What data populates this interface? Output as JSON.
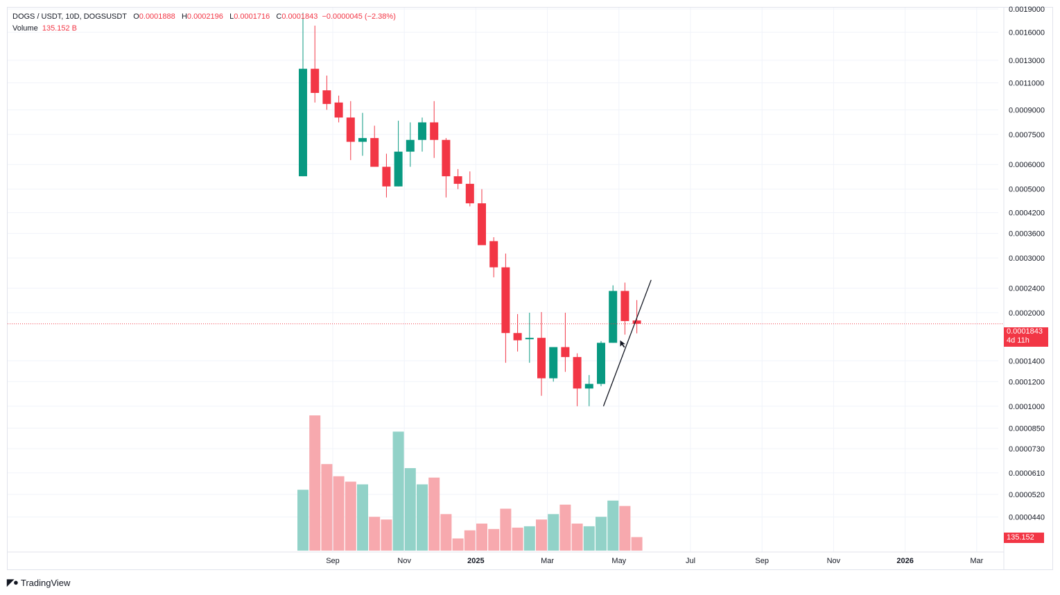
{
  "legend": {
    "symbol": "DOGS / USDT, 10D, DOGSUSDT",
    "o_label": "O",
    "o_value": "0.0001888",
    "h_label": "H",
    "h_value": "0.0002196",
    "l_label": "L",
    "l_value": "0.0001716",
    "c_label": "C",
    "c_value": "0.0001843",
    "change": "−0.0000045 (−2.38%)",
    "volume_label": "Volume",
    "volume_value": "135.152 B"
  },
  "last_price": {
    "value": "0.0001843",
    "countdown": "4d 11h"
  },
  "volume_badge": "135.152 B",
  "footer": {
    "brand": "TradingView",
    "icon": "tradingview-logo-icon"
  },
  "colors": {
    "up": "#089981",
    "down": "#f23645",
    "vol_up": "#92d2c8",
    "vol_down": "#f7a9ae",
    "grid": "#f0f3fa"
  },
  "chart_data": {
    "type": "candlestick",
    "y_scale": "log",
    "ylim": [
      4e-05,
      0.0019
    ],
    "y_ticks": [
      "0.0019000",
      "0.0016000",
      "0.0013000",
      "0.0011000",
      "0.0009000",
      "0.0007500",
      "0.0006000",
      "0.0005000",
      "0.0004200",
      "0.0003600",
      "0.0003000",
      "0.0002400",
      "0.0002000",
      "0.0001400",
      "0.0001200",
      "0.0001000",
      "0.0000850",
      "0.0000730",
      "0.0000610",
      "0.0000520",
      "0.0000440"
    ],
    "x_ticks": [
      {
        "label": "Sep",
        "bar": 2.5
      },
      {
        "label": "Nov",
        "bar": 8.5
      },
      {
        "label": "2025",
        "bar": 14.5
      },
      {
        "label": "Mar",
        "bar": 20.5
      },
      {
        "label": "May",
        "bar": 26.5
      },
      {
        "label": "Jul",
        "bar": 32.5
      },
      {
        "label": "Sep",
        "bar": 38.5
      },
      {
        "label": "Nov",
        "bar": 44.5
      },
      {
        "label": "2026",
        "bar": 50.5
      },
      {
        "label": "Mar",
        "bar": 56.5
      }
    ],
    "candles": [
      {
        "o": 0.00055,
        "h": 0.00185,
        "l": 0.00055,
        "c": 0.00122
      },
      {
        "o": 0.00122,
        "h": 0.00168,
        "l": 0.00095,
        "c": 0.00102
      },
      {
        "o": 0.00104,
        "h": 0.00116,
        "l": 0.0009,
        "c": 0.00094
      },
      {
        "o": 0.00095,
        "h": 0.001,
        "l": 0.00082,
        "c": 0.00085
      },
      {
        "o": 0.00085,
        "h": 0.00096,
        "l": 0.00062,
        "c": 0.00071
      },
      {
        "o": 0.00071,
        "h": 0.00088,
        "l": 0.00064,
        "c": 0.00073
      },
      {
        "o": 0.00073,
        "h": 0.0008,
        "l": 0.00059,
        "c": 0.00059
      },
      {
        "o": 0.00059,
        "h": 0.00065,
        "l": 0.00047,
        "c": 0.00051
      },
      {
        "o": 0.00051,
        "h": 0.00083,
        "l": 0.00051,
        "c": 0.00066
      },
      {
        "o": 0.00066,
        "h": 0.00082,
        "l": 0.00059,
        "c": 0.00072
      },
      {
        "o": 0.00072,
        "h": 0.00085,
        "l": 0.00066,
        "c": 0.00082
      },
      {
        "o": 0.00082,
        "h": 0.00096,
        "l": 0.00063,
        "c": 0.00072
      },
      {
        "o": 0.00072,
        "h": 0.00073,
        "l": 0.00047,
        "c": 0.00055
      },
      {
        "o": 0.00055,
        "h": 0.00058,
        "l": 0.0005,
        "c": 0.00052
      },
      {
        "o": 0.00052,
        "h": 0.00057,
        "l": 0.00044,
        "c": 0.00045
      },
      {
        "o": 0.00045,
        "h": 0.0005,
        "l": 0.00033,
        "c": 0.00033
      },
      {
        "o": 0.00034,
        "h": 0.00035,
        "l": 0.00026,
        "c": 0.00028
      },
      {
        "o": 0.00028,
        "h": 0.00031,
        "l": 0.000138,
        "c": 0.000172
      },
      {
        "o": 0.000172,
        "h": 0.000198,
        "l": 0.00015,
        "c": 0.000163
      },
      {
        "o": 0.000166,
        "h": 0.0002,
        "l": 0.000138,
        "c": 0.000166
      },
      {
        "o": 0.000166,
        "h": 0.000201,
        "l": 0.000108,
        "c": 0.000123
      },
      {
        "o": 0.000123,
        "h": 0.000155,
        "l": 0.00012,
        "c": 0.000155
      },
      {
        "o": 0.000155,
        "h": 0.0002,
        "l": 0.000129,
        "c": 0.000144
      },
      {
        "o": 0.000144,
        "h": 0.000148,
        "l": 0.0001,
        "c": 0.000114
      },
      {
        "o": 0.000114,
        "h": 0.000126,
        "l": 0.0001,
        "c": 0.000118
      },
      {
        "o": 0.000118,
        "h": 0.000162,
        "l": 0.000116,
        "c": 0.00016
      },
      {
        "o": 0.00016,
        "h": 0.000245,
        "l": 0.00016,
        "c": 0.000235
      },
      {
        "o": 0.000235,
        "h": 0.00025,
        "l": 0.00017,
        "c": 0.000188
      },
      {
        "o": 0.0001888,
        "h": 0.0002196,
        "l": 0.0001716,
        "c": 0.0001843
      }
    ],
    "volume_relative": [
      0.45,
      1.0,
      0.64,
      0.55,
      0.51,
      0.49,
      0.25,
      0.23,
      0.88,
      0.61,
      0.49,
      0.54,
      0.27,
      0.09,
      0.15,
      0.2,
      0.16,
      0.31,
      0.17,
      0.18,
      0.23,
      0.27,
      0.34,
      0.2,
      0.18,
      0.25,
      0.37,
      0.33,
      0.1
    ],
    "trendline": {
      "from": {
        "bar": 25.2,
        "price": 0.0001
      },
      "to": {
        "bar": 29.2,
        "price": 0.000255
      }
    }
  }
}
